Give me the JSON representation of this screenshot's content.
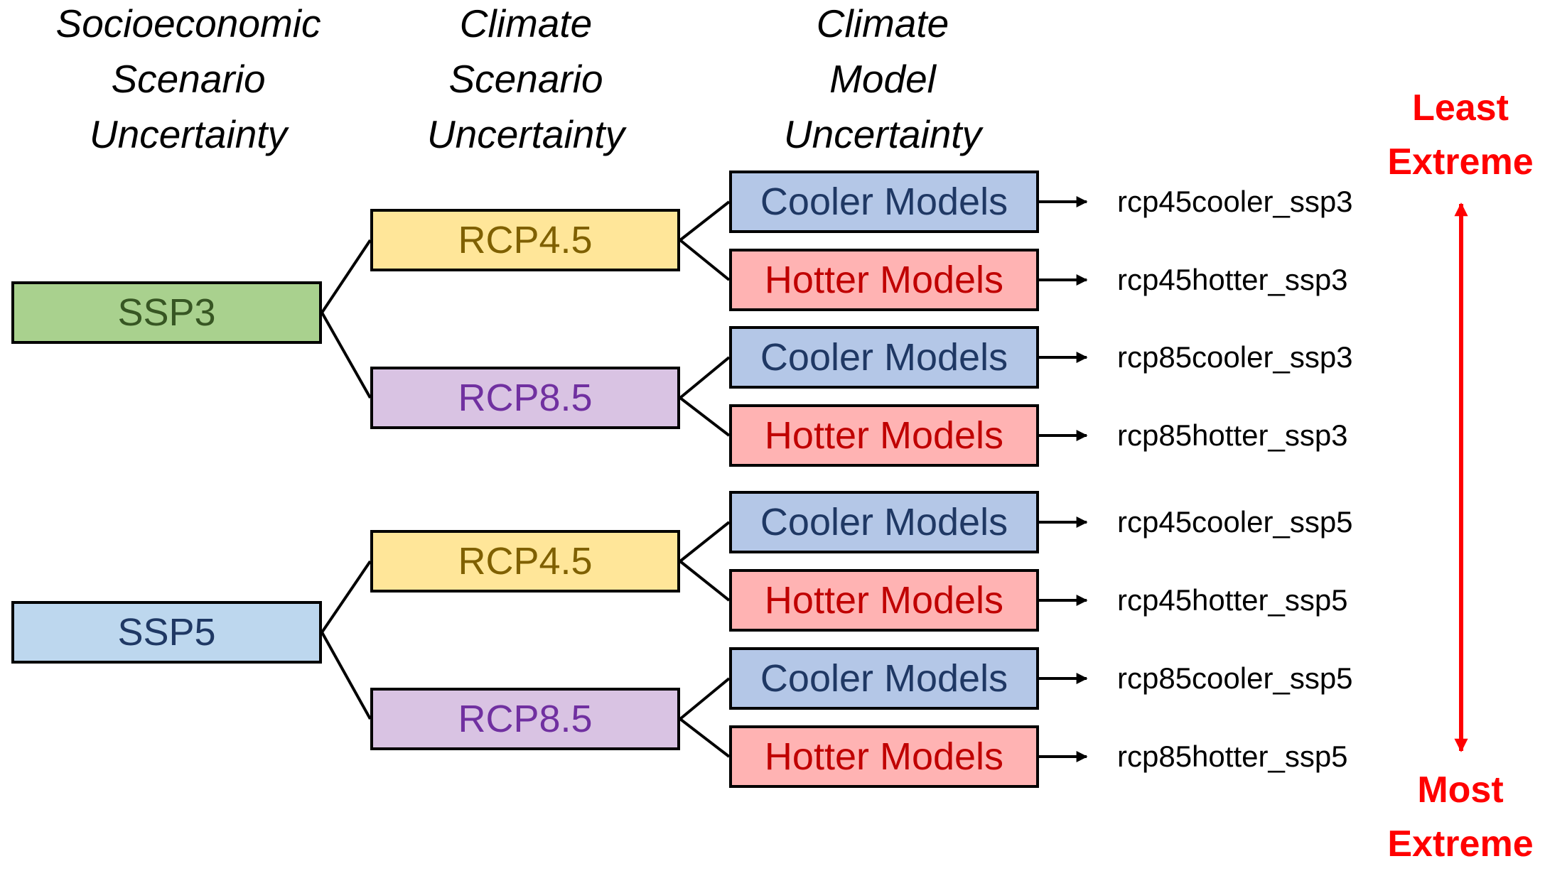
{
  "headers": {
    "socioeconomic": [
      "Socioeconomic",
      "Scenario",
      "Uncertainty"
    ],
    "climate_scenario": [
      "Climate",
      "Scenario",
      "Uncertainty"
    ],
    "climate_model": [
      "Climate",
      "Model",
      "Uncertainty"
    ]
  },
  "ssp": [
    {
      "label": "SSP3",
      "fill": "#a9d18e",
      "text_color": "#375623"
    },
    {
      "label": "SSP5",
      "fill": "#bdd7ee",
      "text_color": "#1f3864"
    }
  ],
  "rcp": [
    {
      "label": "RCP4.5",
      "fill": "#ffe699",
      "text_color": "#7f6000"
    },
    {
      "label": "RCP8.5",
      "fill": "#d9c3e3",
      "text_color": "#7030a0"
    },
    {
      "label": "RCP4.5",
      "fill": "#ffe699",
      "text_color": "#7f6000"
    },
    {
      "label": "RCP8.5",
      "fill": "#d9c3e3",
      "text_color": "#7030a0"
    }
  ],
  "models": [
    {
      "label": "Cooler Models",
      "fill": "#b4c7e7",
      "text_color": "#1f3864"
    },
    {
      "label": "Hotter Models",
      "fill": "#ffb3b3",
      "text_color": "#c00000"
    },
    {
      "label": "Cooler Models",
      "fill": "#b4c7e7",
      "text_color": "#1f3864"
    },
    {
      "label": "Hotter Models",
      "fill": "#ffb3b3",
      "text_color": "#c00000"
    },
    {
      "label": "Cooler Models",
      "fill": "#b4c7e7",
      "text_color": "#1f3864"
    },
    {
      "label": "Hotter Models",
      "fill": "#ffb3b3",
      "text_color": "#c00000"
    },
    {
      "label": "Cooler Models",
      "fill": "#b4c7e7",
      "text_color": "#1f3864"
    },
    {
      "label": "Hotter Models",
      "fill": "#ffb3b3",
      "text_color": "#c00000"
    }
  ],
  "outcomes": [
    "rcp45cooler_ssp3",
    "rcp45hotter_ssp3",
    "rcp85cooler_ssp3",
    "rcp85hotter_ssp3",
    "rcp45cooler_ssp5",
    "rcp45hotter_ssp5",
    "rcp85cooler_ssp5",
    "rcp85hotter_ssp5"
  ],
  "range": {
    "top": [
      "Least",
      "Extreme"
    ],
    "bottom": [
      "Most",
      "Extreme"
    ],
    "color": "#ff0000"
  }
}
